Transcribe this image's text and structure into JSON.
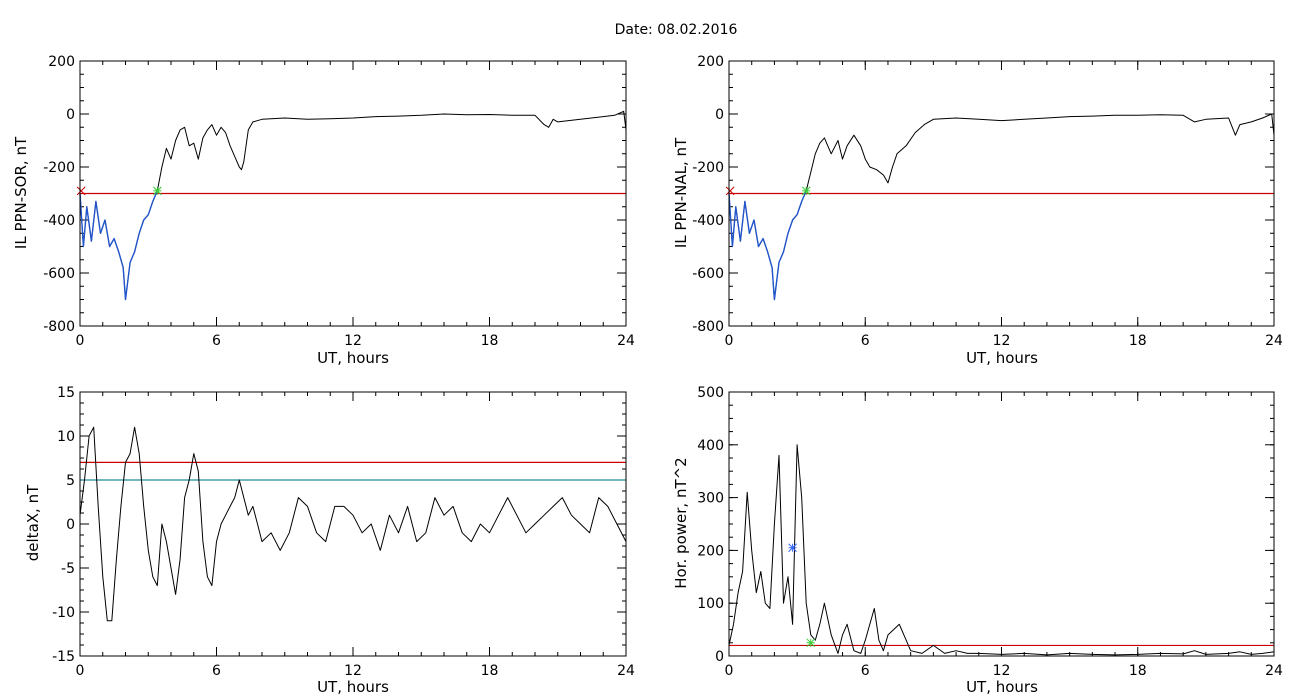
{
  "figure_title": "Date:  08.02.2016",
  "chart_data": [
    {
      "type": "line",
      "panel": "top-left",
      "xlabel": "UT, hours",
      "ylabel": "IL PPN-SOR, nT",
      "xlim": [
        0,
        24
      ],
      "ylim": [
        -800,
        200
      ],
      "xticks": [
        0,
        6,
        12,
        18,
        24
      ],
      "yticks": [
        -800,
        -600,
        -400,
        -200,
        0,
        200
      ],
      "xtick_labels": [
        "0",
        "6",
        "12",
        "18",
        "24"
      ],
      "ytick_labels": [
        "-800",
        "-600",
        "-400",
        "-200",
        "0",
        "200"
      ],
      "series": [
        {
          "color": "#000000",
          "x": [
            0,
            0.15,
            0.3,
            0.5,
            0.7,
            0.9,
            1.1,
            1.3,
            1.5,
            1.7,
            1.9,
            2.0,
            2.2,
            2.4,
            2.6,
            2.8,
            3.0,
            3.2,
            3.4,
            3.6,
            3.8,
            4.0,
            4.2,
            4.4,
            4.6,
            4.8,
            5.0,
            5.2,
            5.4,
            5.6,
            5.8,
            6.0,
            6.2,
            6.4,
            6.6,
            6.8,
            7.0,
            7.1,
            7.2,
            7.4,
            7.6,
            8.0,
            9.0,
            10.0,
            11.0,
            12.0,
            13.0,
            14.0,
            15.0,
            16.0,
            17.0,
            18.0,
            19.0,
            20.0,
            20.4,
            20.6,
            20.8,
            21.0,
            22.0,
            23.0,
            23.5,
            23.9,
            24.0
          ],
          "y": [
            -300,
            -500,
            -350,
            -480,
            -330,
            -450,
            -400,
            -500,
            -470,
            -520,
            -580,
            -700,
            -560,
            -520,
            -450,
            -400,
            -380,
            -330,
            -290,
            -200,
            -130,
            -170,
            -100,
            -60,
            -50,
            -120,
            -110,
            -170,
            -90,
            -60,
            -40,
            -80,
            -50,
            -70,
            -120,
            -160,
            -200,
            -210,
            -180,
            -60,
            -30,
            -20,
            -15,
            -20,
            -18,
            -15,
            -10,
            -8,
            -5,
            0,
            -3,
            -2,
            -5,
            -5,
            -40,
            -50,
            -20,
            -30,
            -20,
            -10,
            -5,
            10,
            -60
          ]
        },
        {
          "color": "#2255cc",
          "x": [
            0,
            0.15,
            0.3,
            0.5,
            0.7,
            0.9,
            1.1,
            1.3,
            1.5,
            1.7,
            1.9,
            2.0,
            2.2,
            2.4,
            2.6,
            2.8,
            3.0,
            3.2,
            3.4
          ],
          "y": [
            -300,
            -500,
            -350,
            -480,
            -330,
            -450,
            -400,
            -500,
            -470,
            -520,
            -580,
            -700,
            -560,
            -520,
            -450,
            -400,
            -380,
            -330,
            -290
          ]
        }
      ],
      "hlines": [
        {
          "y": -300,
          "color": "#cc0000"
        }
      ],
      "markers": [
        {
          "x": 0.05,
          "y": -290,
          "color": "#cc0000",
          "symbol": "x"
        },
        {
          "x": 3.4,
          "y": -290,
          "color": "#33cc33",
          "symbol": "asterisk"
        }
      ]
    },
    {
      "type": "line",
      "panel": "top-right",
      "xlabel": "UT, hours",
      "ylabel": "IL PPN-NAL, nT",
      "xlim": [
        0,
        24
      ],
      "ylim": [
        -800,
        200
      ],
      "xticks": [
        0,
        6,
        12,
        18,
        24
      ],
      "yticks": [
        -800,
        -600,
        -400,
        -200,
        0,
        200
      ],
      "xtick_labels": [
        "0",
        "6",
        "12",
        "18",
        "24"
      ],
      "ytick_labels": [
        "-800",
        "-600",
        "-400",
        "-200",
        "0",
        "200"
      ],
      "series": [
        {
          "color": "#000000",
          "x": [
            0,
            0.15,
            0.3,
            0.5,
            0.7,
            0.9,
            1.1,
            1.3,
            1.5,
            1.7,
            1.9,
            2.0,
            2.2,
            2.4,
            2.6,
            2.8,
            3.0,
            3.2,
            3.4,
            3.6,
            3.8,
            4.0,
            4.2,
            4.5,
            4.8,
            5.0,
            5.2,
            5.5,
            5.8,
            6.0,
            6.2,
            6.5,
            6.8,
            7.0,
            7.2,
            7.4,
            7.8,
            8.2,
            8.6,
            9.0,
            10.0,
            11.0,
            12.0,
            13.0,
            14.0,
            15.0,
            16.0,
            17.0,
            18.0,
            19.0,
            20.0,
            20.5,
            21.0,
            22.0,
            22.3,
            22.5,
            23.0,
            23.5,
            23.9,
            24.0
          ],
          "y": [
            -300,
            -500,
            -350,
            -480,
            -330,
            -450,
            -400,
            -500,
            -470,
            -520,
            -580,
            -700,
            -560,
            -520,
            -450,
            -400,
            -380,
            -330,
            -290,
            -220,
            -150,
            -110,
            -90,
            -150,
            -100,
            -170,
            -120,
            -80,
            -120,
            -170,
            -200,
            -210,
            -230,
            -260,
            -200,
            -150,
            -120,
            -70,
            -40,
            -20,
            -15,
            -20,
            -25,
            -20,
            -15,
            -10,
            -8,
            -5,
            -5,
            -3,
            -5,
            -30,
            -20,
            -15,
            -80,
            -40,
            -30,
            -15,
            0,
            -80
          ]
        },
        {
          "color": "#2255cc",
          "x": [
            0,
            0.15,
            0.3,
            0.5,
            0.7,
            0.9,
            1.1,
            1.3,
            1.5,
            1.7,
            1.9,
            2.0,
            2.2,
            2.4,
            2.6,
            2.8,
            3.0,
            3.2,
            3.4
          ],
          "y": [
            -300,
            -500,
            -350,
            -480,
            -330,
            -450,
            -400,
            -500,
            -470,
            -520,
            -580,
            -700,
            -560,
            -520,
            -450,
            -400,
            -380,
            -330,
            -290
          ]
        }
      ],
      "hlines": [
        {
          "y": -300,
          "color": "#cc0000"
        }
      ],
      "markers": [
        {
          "x": 0.05,
          "y": -290,
          "color": "#cc0000",
          "symbol": "x"
        },
        {
          "x": 3.4,
          "y": -290,
          "color": "#33cc33",
          "symbol": "asterisk"
        }
      ]
    },
    {
      "type": "line",
      "panel": "bottom-left",
      "xlabel": "UT, hours",
      "ylabel": "deltaX, nT",
      "xlim": [
        0,
        24
      ],
      "ylim": [
        -15,
        15
      ],
      "xticks": [
        0,
        6,
        12,
        18,
        24
      ],
      "yticks": [
        -15,
        -10,
        -5,
        0,
        5,
        10,
        15
      ],
      "xtick_labels": [
        "0",
        "6",
        "12",
        "18",
        "24"
      ],
      "ytick_labels": [
        "-15",
        "-10",
        "-5",
        "0",
        "5",
        "10",
        "15"
      ],
      "series": [
        {
          "color": "#000000",
          "x": [
            0,
            0.2,
            0.4,
            0.6,
            0.8,
            1.0,
            1.2,
            1.4,
            1.6,
            1.8,
            2.0,
            2.2,
            2.4,
            2.6,
            2.8,
            3.0,
            3.2,
            3.4,
            3.6,
            3.8,
            4.0,
            4.2,
            4.4,
            4.6,
            4.8,
            5.0,
            5.2,
            5.4,
            5.6,
            5.8,
            6.0,
            6.2,
            6.4,
            6.6,
            6.8,
            7.0,
            7.2,
            7.4,
            7.6,
            7.8,
            8.0,
            8.4,
            8.8,
            9.2,
            9.6,
            10.0,
            10.4,
            10.8,
            11.2,
            11.6,
            12.0,
            12.4,
            12.8,
            13.2,
            13.6,
            14.0,
            14.4,
            14.8,
            15.2,
            15.6,
            16.0,
            16.4,
            16.8,
            17.2,
            17.6,
            18.0,
            18.4,
            18.8,
            19.2,
            19.6,
            20.0,
            20.4,
            20.8,
            21.2,
            21.6,
            22.0,
            22.4,
            22.8,
            23.2,
            23.6,
            24.0
          ],
          "y": [
            1,
            5,
            10,
            11,
            2,
            -6,
            -11,
            -11,
            -4,
            2,
            7,
            8,
            11,
            8,
            2,
            -3,
            -6,
            -7,
            0,
            -2,
            -5,
            -8,
            -4,
            3,
            5,
            8,
            6,
            -2,
            -6,
            -7,
            -2,
            0,
            1,
            2,
            3,
            5,
            3,
            1,
            2,
            0,
            -2,
            -1,
            -3,
            -1,
            3,
            2,
            -1,
            -2,
            2,
            2,
            1,
            -1,
            0,
            -3,
            1,
            -1,
            2,
            -2,
            -1,
            3,
            1,
            2,
            -1,
            -2,
            0,
            -1,
            1,
            3,
            1,
            -1,
            0,
            1,
            2,
            3,
            1,
            0,
            -1,
            3,
            2,
            0,
            -2
          ]
        }
      ],
      "hlines": [
        {
          "y": 7,
          "color": "#cc0000"
        },
        {
          "y": 5,
          "color": "#1f8a96"
        }
      ],
      "markers": []
    },
    {
      "type": "line",
      "panel": "bottom-right",
      "xlabel": "UT, hours",
      "ylabel": "Hor. power, nT^2",
      "xlim": [
        0,
        24
      ],
      "ylim": [
        0,
        500
      ],
      "xticks": [
        0,
        6,
        12,
        18,
        24
      ],
      "yticks": [
        0,
        100,
        200,
        300,
        400,
        500
      ],
      "xtick_labels": [
        "0",
        "6",
        "12",
        "18",
        "24"
      ],
      "ytick_labels": [
        "0",
        "100",
        "200",
        "300",
        "400",
        "500"
      ],
      "series": [
        {
          "color": "#000000",
          "x": [
            0,
            0.2,
            0.4,
            0.6,
            0.8,
            1.0,
            1.2,
            1.4,
            1.6,
            1.8,
            2.0,
            2.2,
            2.4,
            2.6,
            2.8,
            3.0,
            3.2,
            3.4,
            3.6,
            3.8,
            4.0,
            4.2,
            4.5,
            4.8,
            5.0,
            5.2,
            5.5,
            5.8,
            6.0,
            6.2,
            6.4,
            6.6,
            6.8,
            7.0,
            7.5,
            8.0,
            8.5,
            9.0,
            9.5,
            10.0,
            10.5,
            11.0,
            12.0,
            13.0,
            14.0,
            15.0,
            16.0,
            17.0,
            18.0,
            19.0,
            20.0,
            20.5,
            21.0,
            22.0,
            22.5,
            23.0,
            23.5,
            24.0
          ],
          "y": [
            20,
            60,
            120,
            160,
            310,
            200,
            120,
            160,
            100,
            90,
            250,
            380,
            100,
            150,
            60,
            400,
            300,
            100,
            40,
            30,
            60,
            100,
            40,
            5,
            40,
            60,
            10,
            5,
            30,
            60,
            90,
            30,
            10,
            40,
            60,
            10,
            5,
            20,
            5,
            10,
            5,
            5,
            3,
            5,
            2,
            5,
            3,
            2,
            3,
            5,
            4,
            10,
            3,
            5,
            8,
            3,
            5,
            8
          ]
        }
      ],
      "hlines": [
        {
          "y": 20,
          "color": "#cc0000"
        }
      ],
      "markers": [
        {
          "x": 2.8,
          "y": 205,
          "color": "#3366ff",
          "symbol": "asterisk"
        },
        {
          "x": 3.6,
          "y": 25,
          "color": "#33cc33",
          "symbol": "asterisk"
        }
      ]
    }
  ]
}
